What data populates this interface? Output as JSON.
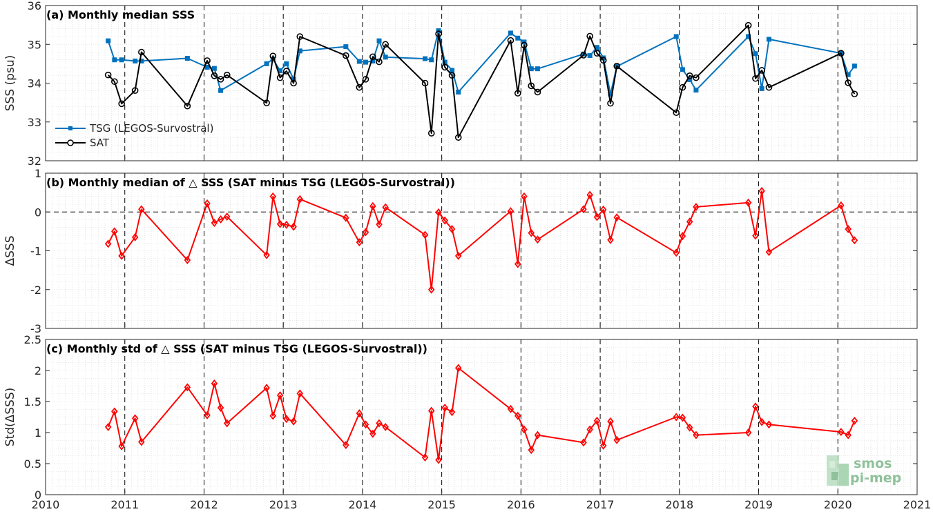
{
  "chart_data": [
    {
      "type": "line",
      "title": "(a) Monthly median SSS",
      "ylabel": "SSS (psu)",
      "ylim": [
        32,
        36
      ],
      "yticks": [
        32,
        33,
        34,
        35,
        36
      ],
      "xlim": [
        2010,
        2021
      ],
      "xticks": [
        2010,
        2011,
        2012,
        2013,
        2014,
        2015,
        2016,
        2017,
        2018,
        2019,
        2020,
        2021
      ],
      "grid": "minor dotted",
      "year_lines": "dashed",
      "legend": "lower-left",
      "series": [
        {
          "name": "TSG (LEGOS-Survostral)",
          "color": "#0072BD",
          "marker": "square",
          "points": [
            [
              2010.79,
              35.09
            ],
            [
              2010.87,
              34.6
            ],
            [
              2010.96,
              34.6
            ],
            [
              2011.13,
              34.57
            ],
            [
              2011.21,
              34.57
            ],
            [
              2011.79,
              34.64
            ],
            [
              2012.04,
              34.41
            ],
            [
              2012.13,
              34.38
            ],
            [
              2012.21,
              33.81
            ],
            [
              2012.79,
              34.5
            ],
            [
              2012.87,
              34.62
            ],
            [
              2012.96,
              34.32
            ],
            [
              2013.04,
              34.5
            ],
            [
              2013.13,
              34.1
            ],
            [
              2013.21,
              34.83
            ],
            [
              2013.79,
              34.94
            ],
            [
              2013.96,
              34.56
            ],
            [
              2014.04,
              34.54
            ],
            [
              2014.13,
              34.57
            ],
            [
              2014.21,
              35.09
            ],
            [
              2014.29,
              34.67
            ],
            [
              2014.79,
              34.63
            ],
            [
              2014.87,
              34.6
            ],
            [
              2014.96,
              35.35
            ],
            [
              2015.04,
              34.54
            ],
            [
              2015.13,
              34.33
            ],
            [
              2015.21,
              33.77
            ],
            [
              2015.87,
              35.29
            ],
            [
              2015.96,
              35.16
            ],
            [
              2016.04,
              35.06
            ],
            [
              2016.13,
              34.37
            ],
            [
              2016.21,
              34.37
            ],
            [
              2016.79,
              34.75
            ],
            [
              2016.87,
              34.71
            ],
            [
              2016.96,
              34.92
            ],
            [
              2017.04,
              34.65
            ],
            [
              2017.13,
              33.72
            ],
            [
              2017.21,
              34.43
            ],
            [
              2017.96,
              35.2
            ],
            [
              2018.04,
              34.35
            ],
            [
              2018.13,
              34.09
            ],
            [
              2018.21,
              33.82
            ],
            [
              2018.87,
              35.2
            ],
            [
              2018.96,
              34.76
            ],
            [
              2019.04,
              33.86
            ],
            [
              2019.13,
              35.13
            ],
            [
              2020.04,
              34.77
            ],
            [
              2020.13,
              34.22
            ],
            [
              2020.21,
              34.44
            ]
          ]
        },
        {
          "name": "SAT",
          "color": "#000000",
          "marker": "circle",
          "points": [
            [
              2010.79,
              34.21
            ],
            [
              2010.87,
              34.04
            ],
            [
              2010.96,
              33.47
            ],
            [
              2011.13,
              33.81
            ],
            [
              2011.21,
              34.8
            ],
            [
              2011.79,
              33.41
            ],
            [
              2012.04,
              34.58
            ],
            [
              2012.13,
              34.19
            ],
            [
              2012.21,
              34.1
            ],
            [
              2012.29,
              34.21
            ],
            [
              2012.79,
              33.49
            ],
            [
              2012.87,
              34.7
            ],
            [
              2012.96,
              34.14
            ],
            [
              2013.04,
              34.31
            ],
            [
              2013.13,
              34.0
            ],
            [
              2013.21,
              35.2
            ],
            [
              2013.79,
              34.71
            ],
            [
              2013.96,
              33.89
            ],
            [
              2014.04,
              34.1
            ],
            [
              2014.13,
              34.68
            ],
            [
              2014.21,
              34.55
            ],
            [
              2014.29,
              35.0
            ],
            [
              2014.79,
              34.0
            ],
            [
              2014.87,
              32.71
            ],
            [
              2014.96,
              35.27
            ],
            [
              2015.04,
              34.41
            ],
            [
              2015.13,
              34.2
            ],
            [
              2015.21,
              32.6
            ],
            [
              2015.87,
              35.1
            ],
            [
              2015.96,
              33.74
            ],
            [
              2016.04,
              34.98
            ],
            [
              2016.13,
              33.93
            ],
            [
              2016.21,
              33.77
            ],
            [
              2016.79,
              34.72
            ],
            [
              2016.87,
              35.21
            ],
            [
              2016.96,
              34.77
            ],
            [
              2017.04,
              34.59
            ],
            [
              2017.13,
              33.48
            ],
            [
              2017.21,
              34.44
            ],
            [
              2017.96,
              33.24
            ],
            [
              2018.04,
              33.89
            ],
            [
              2018.13,
              34.19
            ],
            [
              2018.21,
              34.14
            ],
            [
              2018.87,
              35.49
            ],
            [
              2018.96,
              34.12
            ],
            [
              2019.04,
              34.33
            ],
            [
              2019.13,
              33.89
            ],
            [
              2020.04,
              34.77
            ],
            [
              2020.13,
              34.01
            ],
            [
              2020.21,
              33.72
            ]
          ]
        }
      ]
    },
    {
      "type": "line",
      "title": "(b) Monthly median of △ SSS (SAT minus TSG (LEGOS-Survostral))",
      "ylabel": "ΔSSS",
      "ylim": [
        -3,
        1
      ],
      "yticks": [
        -3,
        -2,
        -1,
        0,
        1
      ],
      "xlim": [
        2010,
        2021
      ],
      "zero_line": "dashed",
      "series": [
        {
          "color": "#FF0000",
          "marker": "diamond",
          "points": [
            [
              2010.79,
              -0.82
            ],
            [
              2010.87,
              -0.5
            ],
            [
              2010.96,
              -1.13
            ],
            [
              2011.13,
              -0.65
            ],
            [
              2011.21,
              0.07
            ],
            [
              2011.79,
              -1.24
            ],
            [
              2012.04,
              0.22
            ],
            [
              2012.13,
              -0.28
            ],
            [
              2012.21,
              -0.19
            ],
            [
              2012.29,
              -0.12
            ],
            [
              2012.79,
              -1.11
            ],
            [
              2012.87,
              0.4
            ],
            [
              2012.96,
              -0.31
            ],
            [
              2013.04,
              -0.33
            ],
            [
              2013.13,
              -0.38
            ],
            [
              2013.21,
              0.33
            ],
            [
              2013.79,
              -0.15
            ],
            [
              2013.96,
              -0.78
            ],
            [
              2014.04,
              -0.52
            ],
            [
              2014.13,
              0.15
            ],
            [
              2014.21,
              -0.32
            ],
            [
              2014.29,
              0.12
            ],
            [
              2014.79,
              -0.59
            ],
            [
              2014.87,
              -2.0
            ],
            [
              2014.96,
              -0.01
            ],
            [
              2015.04,
              -0.22
            ],
            [
              2015.13,
              -0.44
            ],
            [
              2015.21,
              -1.13
            ],
            [
              2015.87,
              0.02
            ],
            [
              2015.96,
              -1.34
            ],
            [
              2016.04,
              0.4
            ],
            [
              2016.13,
              -0.54
            ],
            [
              2016.21,
              -0.71
            ],
            [
              2016.79,
              0.07
            ],
            [
              2016.87,
              0.44
            ],
            [
              2016.96,
              -0.13
            ],
            [
              2017.04,
              0.06
            ],
            [
              2017.13,
              -0.72
            ],
            [
              2017.21,
              -0.14
            ],
            [
              2017.96,
              -1.05
            ],
            [
              2018.04,
              -0.62
            ],
            [
              2018.13,
              -0.25
            ],
            [
              2018.21,
              0.13
            ],
            [
              2018.87,
              0.24
            ],
            [
              2018.96,
              -0.61
            ],
            [
              2019.04,
              0.54
            ],
            [
              2019.13,
              -1.03
            ],
            [
              2020.04,
              0.17
            ],
            [
              2020.13,
              -0.44
            ],
            [
              2020.21,
              -0.73
            ]
          ]
        }
      ]
    },
    {
      "type": "line",
      "title": "(c) Monthly std of △ SSS (SAT minus TSG (LEGOS-Survostral))",
      "ylabel": "Std(ΔSSS)",
      "ylim": [
        0,
        2.5
      ],
      "yticks": [
        0,
        0.5,
        1,
        1.5,
        2,
        2.5
      ],
      "xlim": [
        2010,
        2021
      ],
      "series": [
        {
          "color": "#FF0000",
          "marker": "diamond",
          "points": [
            [
              2010.79,
              1.09
            ],
            [
              2010.87,
              1.34
            ],
            [
              2010.96,
              0.78
            ],
            [
              2011.13,
              1.23
            ],
            [
              2011.21,
              0.85
            ],
            [
              2011.79,
              1.73
            ],
            [
              2012.04,
              1.28
            ],
            [
              2012.13,
              1.79
            ],
            [
              2012.21,
              1.4
            ],
            [
              2012.29,
              1.15
            ],
            [
              2012.79,
              1.72
            ],
            [
              2012.87,
              1.27
            ],
            [
              2012.96,
              1.6
            ],
            [
              2013.04,
              1.22
            ],
            [
              2013.13,
              1.18
            ],
            [
              2013.21,
              1.63
            ],
            [
              2013.79,
              0.8
            ],
            [
              2013.96,
              1.31
            ],
            [
              2014.04,
              1.13
            ],
            [
              2014.13,
              0.98
            ],
            [
              2014.21,
              1.15
            ],
            [
              2014.29,
              1.09
            ],
            [
              2014.79,
              0.6
            ],
            [
              2014.87,
              1.35
            ],
            [
              2014.96,
              0.56
            ],
            [
              2015.04,
              1.4
            ],
            [
              2015.13,
              1.33
            ],
            [
              2015.21,
              2.04
            ],
            [
              2015.87,
              1.38
            ],
            [
              2015.96,
              1.27
            ],
            [
              2016.04,
              1.05
            ],
            [
              2016.13,
              0.72
            ],
            [
              2016.21,
              0.96
            ],
            [
              2016.79,
              0.84
            ],
            [
              2016.87,
              1.05
            ],
            [
              2016.96,
              1.19
            ],
            [
              2017.04,
              0.79
            ],
            [
              2017.13,
              1.18
            ],
            [
              2017.21,
              0.88
            ],
            [
              2017.96,
              1.25
            ],
            [
              2018.04,
              1.24
            ],
            [
              2018.13,
              1.08
            ],
            [
              2018.21,
              0.96
            ],
            [
              2018.87,
              1.0
            ],
            [
              2018.96,
              1.42
            ],
            [
              2019.04,
              1.17
            ],
            [
              2019.13,
              1.13
            ],
            [
              2020.04,
              1.01
            ],
            [
              2020.13,
              0.96
            ],
            [
              2020.21,
              1.19
            ]
          ]
        }
      ]
    }
  ],
  "logo": {
    "line1": "smos",
    "line2": "pi-mep"
  }
}
